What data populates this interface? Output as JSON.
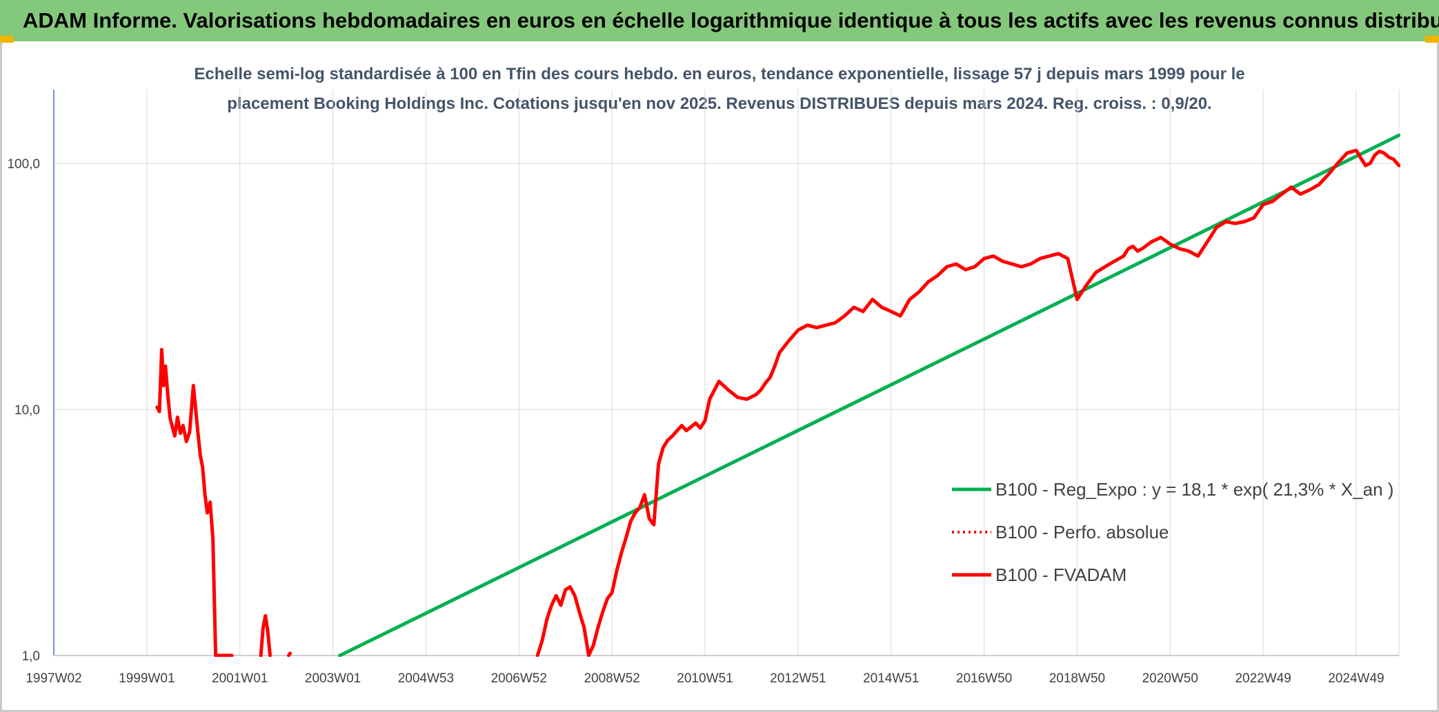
{
  "header": {
    "title": "ADAM Informe. Valorisations hebdomadaires en euros en échelle logarithmique identique à tous les actifs avec les revenus connus distribués"
  },
  "colors": {
    "header_bg": "#84c87b",
    "accent": "#f2b400",
    "trend": "#00b050",
    "price": "#ff0000",
    "grid": "#d9d9d9"
  },
  "chart_data": {
    "type": "line",
    "subtitle_lines": [
      "Echelle semi-log standardisée à 100 en Tfin des cours hebdo. en euros, tendance exponentielle, lissage 57 j depuis mars 1999 pour le",
      "placement Booking Holdings Inc. Cotations jusqu'en nov 2025. Revenus DISTRIBUES depuis mars 2024. Reg. croiss. : 0,9/20."
    ],
    "y_scale": "log",
    "ylim": [
      1,
      100
    ],
    "xlim": [
      1997.0,
      2025.92
    ],
    "y_ticks": [
      {
        "value": 100,
        "label": "100,0"
      },
      {
        "value": 10,
        "label": "10,0"
      },
      {
        "value": 1,
        "label": "1,0"
      }
    ],
    "x_ticks": [
      {
        "value": 1997.0,
        "label": "1997W02"
      },
      {
        "value": 1999.0,
        "label": "1999W01"
      },
      {
        "value": 2001.0,
        "label": "2001W01"
      },
      {
        "value": 2003.0,
        "label": "2003W01"
      },
      {
        "value": 2005.0,
        "label": "2004W53"
      },
      {
        "value": 2007.0,
        "label": "2006W52"
      },
      {
        "value": 2009.0,
        "label": "2008W52"
      },
      {
        "value": 2011.0,
        "label": "2010W51"
      },
      {
        "value": 2013.0,
        "label": "2012W51"
      },
      {
        "value": 2015.0,
        "label": "2014W51"
      },
      {
        "value": 2017.0,
        "label": "2016W50"
      },
      {
        "value": 2019.0,
        "label": "2018W50"
      },
      {
        "value": 2021.0,
        "label": "2020W50"
      },
      {
        "value": 2023.0,
        "label": "2022W49"
      },
      {
        "value": 2025.0,
        "label": "2024W49"
      }
    ],
    "grid": true,
    "legend_placement": "bottom-right",
    "series": [
      {
        "name": "B100 - Reg_Expo : y = 18,1 * exp( 21,3% *  X_an )",
        "style": "solid",
        "color": "#00b050",
        "x": [
          2003.15,
          2025.92
        ],
        "y": [
          1.0,
          130
        ]
      },
      {
        "name": "B100 - Perfo. absolue",
        "style": "dotted",
        "color": "#ff0000",
        "x": [],
        "y": []
      },
      {
        "name": "B100 - FVADAM",
        "style": "solid",
        "color": "#ff0000",
        "segments": [
          {
            "x": [
              1999.22,
              1999.27,
              1999.32,
              1999.36,
              1999.4,
              1999.45,
              1999.5,
              1999.55,
              1999.6,
              1999.66,
              1999.72,
              1999.78,
              1999.85,
              1999.92,
              2000.0,
              2000.05,
              2000.1,
              2000.15,
              2000.2,
              2000.25,
              2000.3,
              2000.36,
              2000.42,
              2000.48,
              2000.55,
              2000.6,
              2000.65,
              2000.7,
              2000.75,
              2000.8,
              2000.83
            ],
            "y": [
              10.2,
              9.8,
              17.5,
              12.5,
              15.0,
              11.5,
              9.2,
              8.5,
              7.8,
              9.3,
              8.0,
              8.6,
              7.4,
              8.1,
              12.5,
              10.0,
              8.0,
              6.5,
              5.8,
              4.5,
              3.8,
              4.2,
              3.0,
              1.0,
              1.0,
              1.0,
              1.0,
              1.0,
              1.0,
              1.0,
              1.0
            ]
          },
          {
            "x": [
              2001.45,
              2001.5,
              2001.55,
              2001.6,
              2001.65
            ],
            "y": [
              1.0,
              1.3,
              1.45,
              1.25,
              1.0
            ]
          },
          {
            "x": [
              2002.05,
              2002.08
            ],
            "y": [
              1.0,
              1.02
            ]
          },
          {
            "x": [
              2007.4,
              2007.5,
              2007.6,
              2007.7,
              2007.8,
              2007.9,
              2008.0,
              2008.1,
              2008.2,
              2008.3,
              2008.4,
              2008.5,
              2008.6,
              2008.7,
              2008.8,
              2008.9,
              2009.0,
              2009.1,
              2009.2,
              2009.3,
              2009.4,
              2009.5,
              2009.6,
              2009.7,
              2009.8,
              2009.9,
              2010.0,
              2010.1,
              2010.2,
              2010.3,
              2010.4,
              2010.5,
              2010.6,
              2010.7,
              2010.8,
              2010.9,
              2011.0,
              2011.1,
              2011.3,
              2011.5,
              2011.7,
              2011.9,
              2012.1,
              2012.2,
              2012.3,
              2012.4,
              2012.5,
              2012.6,
              2012.8,
              2013.0,
              2013.2,
              2013.4,
              2013.6,
              2013.8,
              2014.0,
              2014.2,
              2014.4,
              2014.6,
              2014.8,
              2015.0,
              2015.2,
              2015.4,
              2015.6,
              2015.8,
              2016.0,
              2016.2,
              2016.4,
              2016.6,
              2016.8,
              2017.0,
              2017.2,
              2017.4,
              2017.6,
              2017.8,
              2018.0,
              2018.2,
              2018.4,
              2018.6,
              2018.8,
              2019.0,
              2019.2,
              2019.4,
              2019.6,
              2019.8,
              2020.0,
              2020.1,
              2020.2,
              2020.3,
              2020.4,
              2020.6,
              2020.8,
              2021.0,
              2021.2,
              2021.4,
              2021.6,
              2021.8,
              2022.0,
              2022.2,
              2022.4,
              2022.6,
              2022.8,
              2023.0,
              2023.2,
              2023.4,
              2023.6,
              2023.8,
              2024.0,
              2024.2,
              2024.4,
              2024.6,
              2024.8,
              2025.0,
              2025.1,
              2025.2,
              2025.3,
              2025.4,
              2025.5,
              2025.6,
              2025.7,
              2025.8,
              2025.92
            ],
            "y": [
              1.0,
              1.15,
              1.4,
              1.6,
              1.75,
              1.6,
              1.85,
              1.9,
              1.75,
              1.5,
              1.3,
              1.0,
              1.1,
              1.3,
              1.5,
              1.7,
              1.8,
              2.2,
              2.6,
              3.0,
              3.5,
              3.8,
              4.0,
              4.5,
              3.6,
              3.4,
              6.0,
              7.0,
              7.5,
              7.8,
              8.2,
              8.6,
              8.2,
              8.5,
              8.8,
              8.4,
              9.0,
              11.0,
              13.0,
              12.0,
              11.2,
              11.0,
              11.5,
              12.0,
              12.8,
              13.5,
              15.0,
              17.0,
              19.0,
              21.0,
              22.0,
              21.5,
              22.0,
              22.5,
              24.0,
              26.0,
              25.0,
              28.0,
              26.0,
              25.0,
              24.0,
              28.0,
              30.0,
              33.0,
              35.0,
              38.0,
              39.0,
              37.0,
              38.0,
              41.0,
              42.0,
              40.0,
              39.0,
              38.0,
              39.0,
              41.0,
              42.0,
              43.0,
              41.0,
              28.0,
              32.0,
              36.0,
              38.0,
              40.0,
              42.0,
              45.0,
              46.0,
              44.0,
              45.0,
              48.0,
              50.0,
              47.0,
              45.0,
              44.0,
              42.0,
              48.0,
              55.0,
              58.0,
              57.0,
              58.0,
              60.0,
              68.0,
              70.0,
              75.0,
              80.0,
              75.0,
              78.0,
              82.0,
              90.0,
              100.0,
              110.0,
              113.0,
              105.0,
              98.0,
              100.0,
              108.0,
              112.0,
              110.0,
              106.0,
              104.0,
              98.0
            ]
          }
        ]
      }
    ]
  }
}
